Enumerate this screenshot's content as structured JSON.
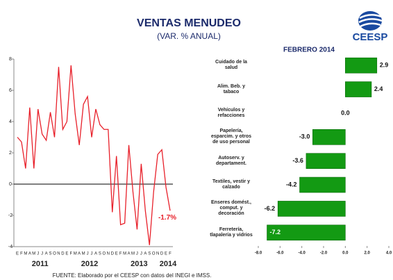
{
  "title": "VENTAS MENUDEO",
  "subtitle": "(VAR. % ANUAL)",
  "logo": "CEESP",
  "source": "FUENTE: Elaborado por el CEESP con datos del INEGI e IMSS.",
  "chart_data": [
    {
      "type": "line",
      "categories": [
        "E",
        "F",
        "M",
        "A",
        "M",
        "J",
        "J",
        "A",
        "S",
        "O",
        "N",
        "D",
        "E",
        "F",
        "M",
        "A",
        "M",
        "J",
        "J",
        "A",
        "S",
        "O",
        "N",
        "D",
        "E",
        "F",
        "M",
        "A",
        "M",
        "J",
        "J",
        "A",
        "S",
        "O",
        "N",
        "D",
        "E",
        "F"
      ],
      "year_labels": [
        "2011",
        "2012",
        "2013",
        "2014"
      ],
      "values": [
        3.0,
        2.7,
        1.0,
        4.9,
        1.0,
        4.8,
        3.2,
        2.8,
        4.6,
        3.0,
        7.5,
        3.5,
        4.0,
        7.6,
        4.5,
        2.5,
        5.1,
        5.6,
        3.0,
        4.8,
        3.8,
        3.5,
        3.5,
        -1.8,
        1.8,
        -2.6,
        -2.5,
        2.5,
        -0.5,
        -2.9,
        1.3,
        -1.7,
        -3.9,
        -0.5,
        1.9,
        2.2,
        -0.2,
        -1.7
      ],
      "color": "#e8202a",
      "annotation": "-1.7%",
      "ylim": [
        -4,
        8
      ],
      "yticks": [
        -4,
        -2,
        0,
        2,
        4,
        6,
        8
      ]
    },
    {
      "type": "hbar",
      "title": "FEBRERO 2014",
      "categories": [
        "Cuidado de la\nsalud",
        "Alim. Beb. y\ntabaco",
        "Vehículos y\nrefacciones",
        "Papelería,\nesparcim. y otros\nde uso personal",
        "Autoserv. y\ndepartament.",
        "Textiles, vestir y\ncalzado",
        "Enseres domést.,\ncomput. y\ndecoración",
        "Ferretería,\ntlapalería y vidrios"
      ],
      "values": [
        2.9,
        2.4,
        0.0,
        -3.0,
        -3.6,
        -4.2,
        -6.2,
        -7.2
      ],
      "value_labels": [
        "2.9",
        "2.4",
        "0.0",
        "-3.0",
        "-3.6",
        "-4.2",
        "-6.2",
        "-7.2"
      ],
      "color": "#139a13",
      "xlim": [
        -8,
        4
      ],
      "xticks": [
        {
          "value": -8,
          "label": "-8.0"
        },
        {
          "value": -6,
          "label": "-6.0"
        },
        {
          "value": -4,
          "label": "-4.0"
        },
        {
          "value": -2,
          "label": "-2.0"
        },
        {
          "value": 0,
          "label": "0.0"
        },
        {
          "value": 2,
          "label": "2.0"
        },
        {
          "value": 4,
          "label": "4.0"
        }
      ]
    }
  ]
}
